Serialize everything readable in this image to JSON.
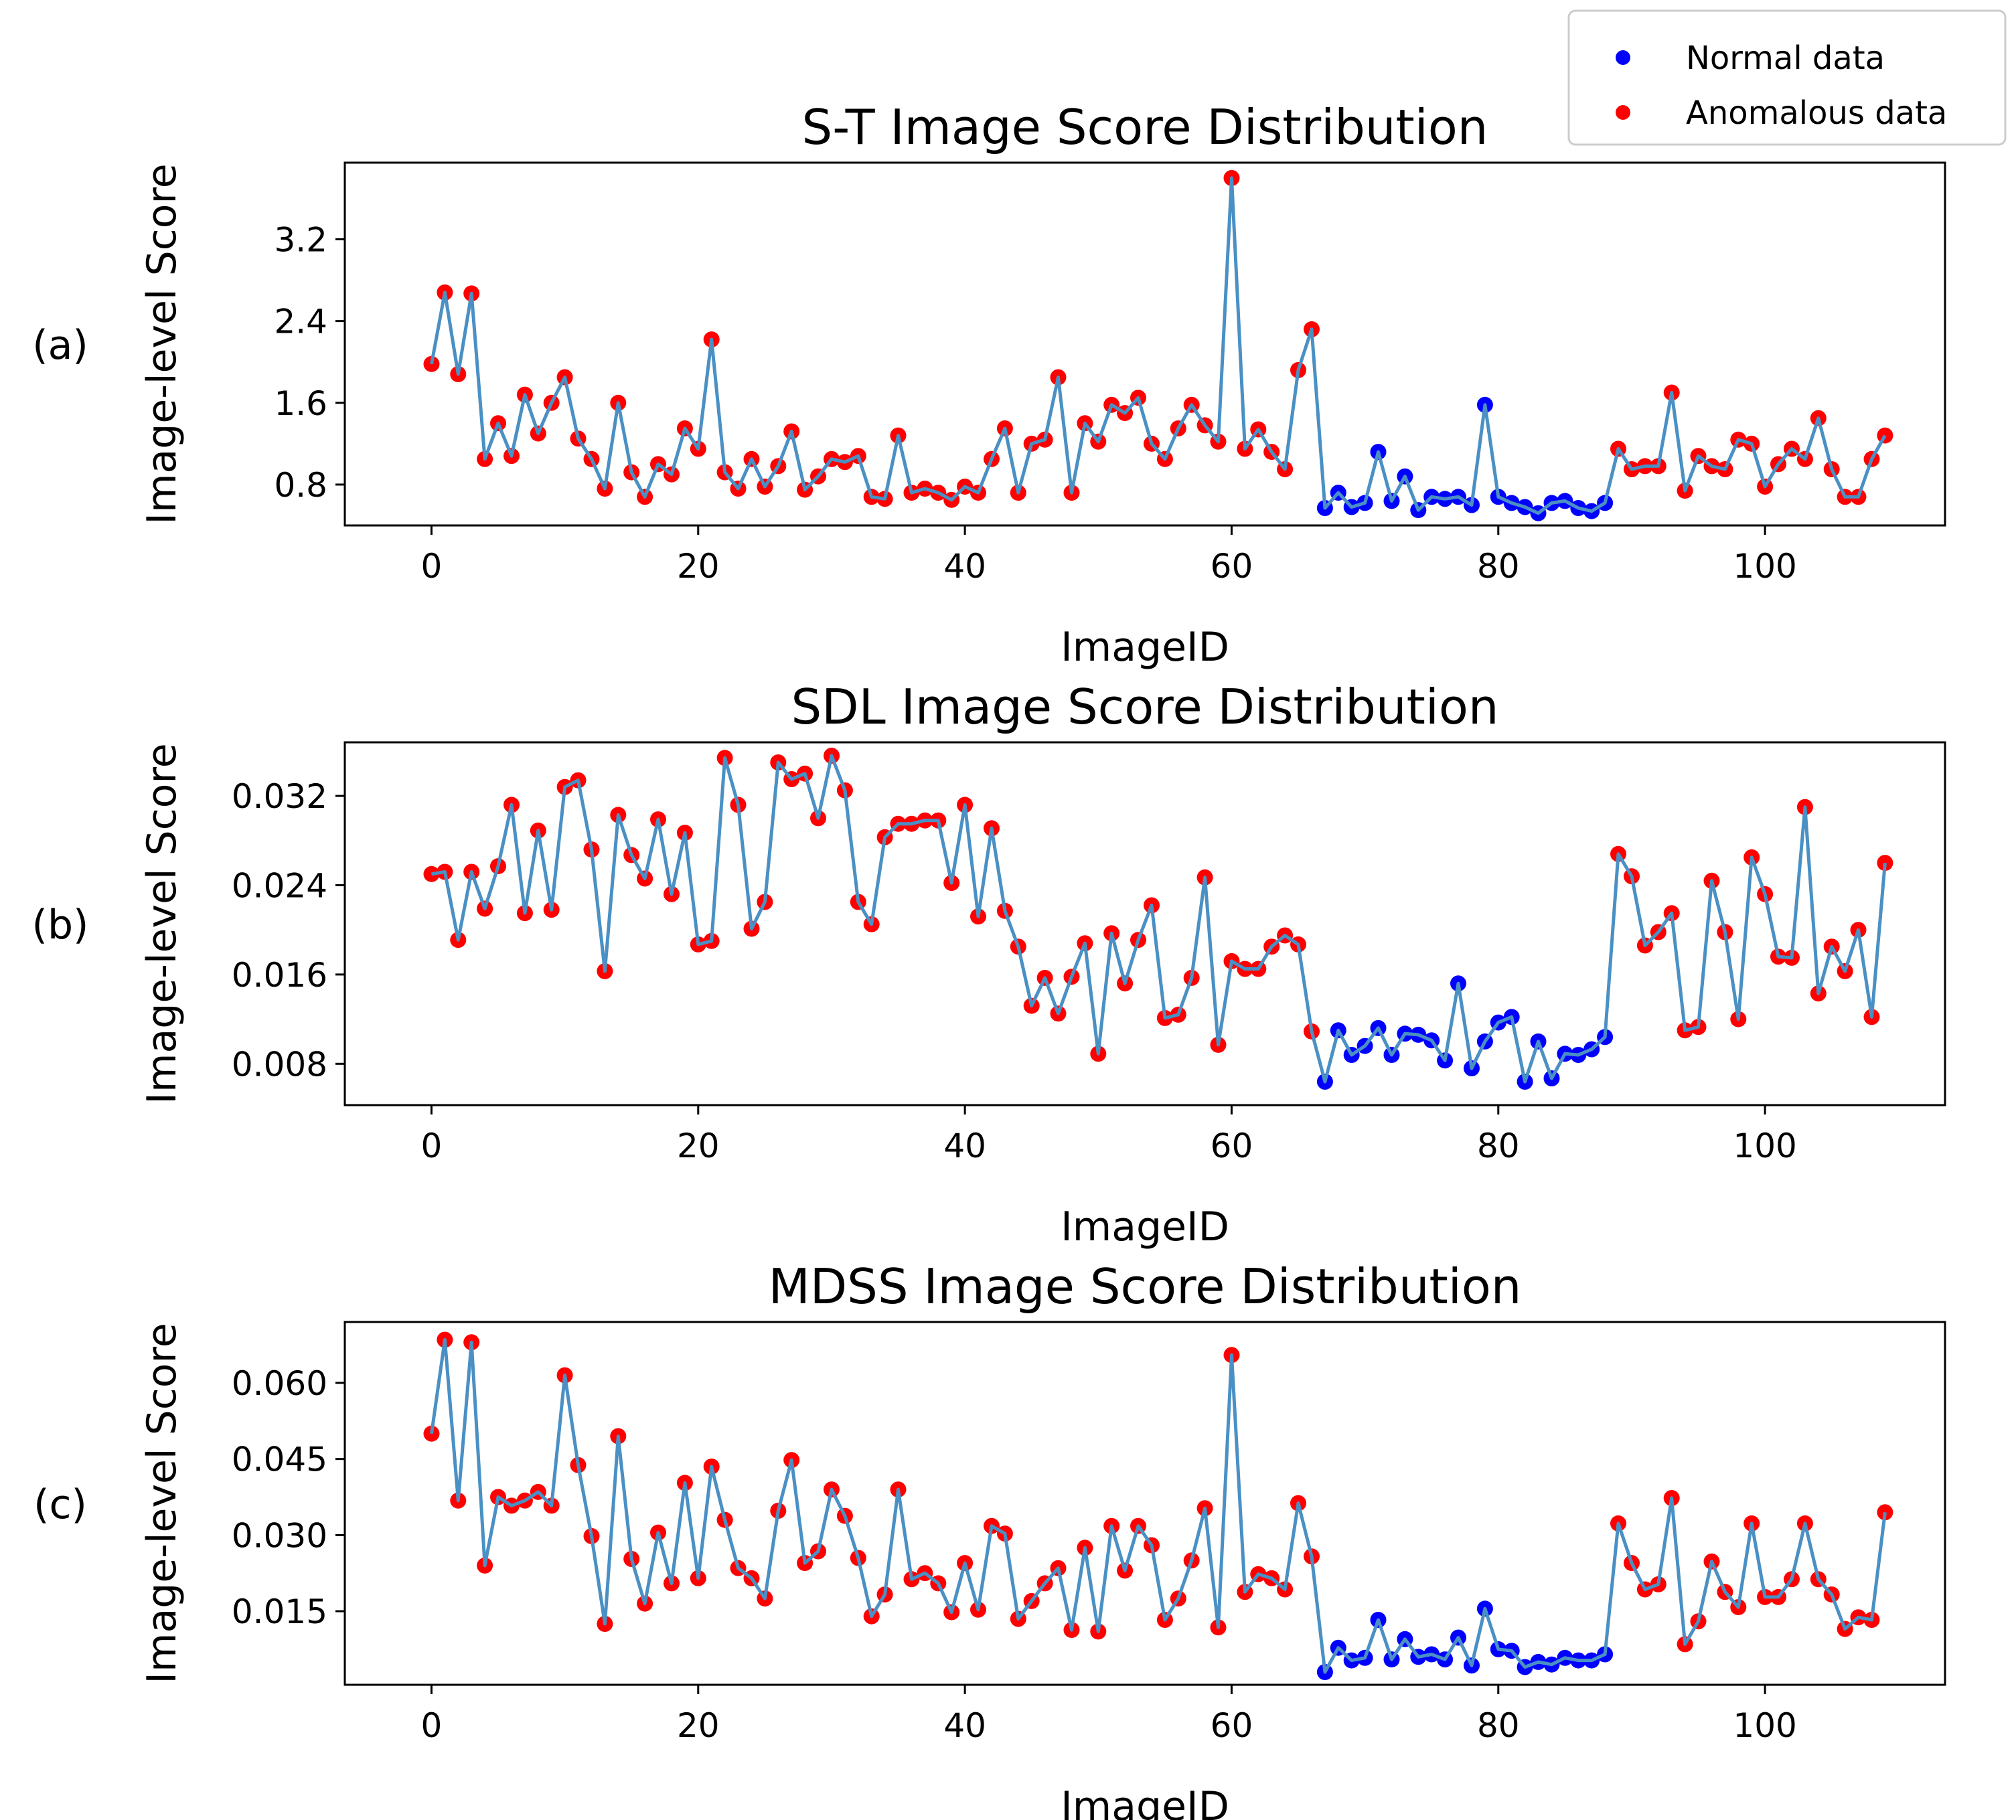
{
  "legend": {
    "placement": "top-right",
    "entries": [
      {
        "label": "Normal data",
        "color": "#0000ff"
      },
      {
        "label": "Anomalous data",
        "color": "#ff0000"
      }
    ]
  },
  "colors": {
    "line": "#4a90c4",
    "normal": "#0000ff",
    "anomalous": "#ff0000"
  },
  "chart_data": [
    {
      "type": "line",
      "panel": "(a)",
      "title": "S-T Image Score Distribution",
      "xlabel": "ImageID",
      "ylabel": "Image-level Score",
      "xlim": [
        -6.5,
        113.5
      ],
      "ylim": [
        0.4,
        3.95
      ],
      "xticks": [
        0,
        20,
        40,
        60,
        80,
        100
      ],
      "yticks": [
        0.8,
        1.6,
        2.4,
        3.2
      ],
      "ytick_labels": [
        "0.8",
        "1.6",
        "2.4",
        "3.2"
      ],
      "normal_range": [
        67,
        88
      ],
      "values": [
        1.98,
        2.68,
        1.88,
        2.67,
        1.05,
        1.4,
        1.08,
        1.68,
        1.3,
        1.6,
        1.85,
        1.25,
        1.05,
        0.76,
        1.6,
        0.92,
        0.68,
        1.0,
        0.9,
        1.35,
        1.15,
        2.22,
        0.92,
        0.76,
        1.05,
        0.78,
        0.98,
        1.32,
        0.75,
        0.88,
        1.05,
        1.02,
        1.08,
        0.68,
        0.66,
        1.28,
        0.72,
        0.76,
        0.72,
        0.65,
        0.78,
        0.72,
        1.05,
        1.35,
        0.72,
        1.2,
        1.24,
        1.85,
        0.72,
        1.4,
        1.22,
        1.58,
        1.5,
        1.65,
        1.2,
        1.05,
        1.35,
        1.58,
        1.38,
        1.22,
        3.8,
        1.15,
        1.34,
        1.12,
        0.95,
        1.92,
        2.32,
        0.57,
        0.72,
        0.58,
        0.62,
        1.12,
        0.64,
        0.88,
        0.55,
        0.68,
        0.66,
        0.68,
        0.6,
        1.58,
        0.68,
        0.62,
        0.58,
        0.52,
        0.62,
        0.64,
        0.57,
        0.54,
        0.62,
        1.15,
        0.95,
        0.98,
        0.98,
        1.7,
        0.74,
        1.08,
        0.98,
        0.95,
        1.24,
        1.2,
        0.78,
        1.0,
        1.15,
        1.05,
        1.45,
        0.95,
        0.68,
        0.68,
        1.05,
        1.28
      ]
    },
    {
      "type": "line",
      "panel": "(b)",
      "title": "SDL Image Score Distribution",
      "xlabel": "ImageID",
      "ylabel": "Image-level Score",
      "xlim": [
        -6.5,
        113.5
      ],
      "ylim": [
        0.0043,
        0.0368
      ],
      "xticks": [
        0,
        20,
        40,
        60,
        80,
        100
      ],
      "yticks": [
        0.008,
        0.016,
        0.024,
        0.032
      ],
      "ytick_labels": [
        "0.008",
        "0.016",
        "0.024",
        "0.032"
      ],
      "normal_range": [
        67,
        88
      ],
      "values": [
        0.025,
        0.0252,
        0.0191,
        0.0252,
        0.0219,
        0.0257,
        0.0312,
        0.0215,
        0.0289,
        0.0218,
        0.0328,
        0.0334,
        0.0272,
        0.0163,
        0.0303,
        0.0267,
        0.0246,
        0.0299,
        0.0232,
        0.0287,
        0.0187,
        0.019,
        0.0354,
        0.0312,
        0.0201,
        0.0225,
        0.035,
        0.0335,
        0.034,
        0.03,
        0.0356,
        0.0325,
        0.0225,
        0.0205,
        0.0283,
        0.0295,
        0.0295,
        0.0298,
        0.0298,
        0.0242,
        0.0312,
        0.0212,
        0.0291,
        0.0217,
        0.0185,
        0.0132,
        0.0157,
        0.0125,
        0.0158,
        0.0188,
        0.0089,
        0.0197,
        0.0152,
        0.0191,
        0.0222,
        0.0121,
        0.0124,
        0.0157,
        0.0247,
        0.0097,
        0.0172,
        0.0165,
        0.0165,
        0.0185,
        0.0195,
        0.0187,
        0.0109,
        0.0064,
        0.011,
        0.0088,
        0.0096,
        0.0112,
        0.0088,
        0.0107,
        0.0106,
        0.0101,
        0.0083,
        0.0152,
        0.0076,
        0.01,
        0.0117,
        0.0122,
        0.0064,
        0.01,
        0.0067,
        0.0089,
        0.0088,
        0.0093,
        0.0104,
        0.0268,
        0.0248,
        0.0186,
        0.0198,
        0.0215,
        0.011,
        0.0113,
        0.0244,
        0.0198,
        0.012,
        0.0265,
        0.0232,
        0.0176,
        0.0175,
        0.031,
        0.0143,
        0.0185,
        0.0163,
        0.02,
        0.0122,
        0.026
      ]
    },
    {
      "type": "line",
      "panel": "(c)",
      "title": "MDSS Image Score Distribution",
      "xlabel": "ImageID",
      "ylabel": "Image-level Score",
      "xlim": [
        -6.5,
        113.5
      ],
      "ylim": [
        0.0005,
        0.072
      ],
      "xticks": [
        0,
        20,
        40,
        60,
        80,
        100
      ],
      "yticks": [
        0.015,
        0.03,
        0.045,
        0.06
      ],
      "ytick_labels": [
        "0.015",
        "0.030",
        "0.045",
        "0.060"
      ],
      "normal_range": [
        67,
        88
      ],
      "values": [
        0.05,
        0.0685,
        0.0368,
        0.068,
        0.024,
        0.0375,
        0.0358,
        0.0368,
        0.0385,
        0.0358,
        0.0615,
        0.0438,
        0.0298,
        0.0125,
        0.0495,
        0.0253,
        0.0165,
        0.0305,
        0.0205,
        0.0403,
        0.0215,
        0.0435,
        0.033,
        0.0235,
        0.0215,
        0.0175,
        0.0348,
        0.0448,
        0.0245,
        0.0268,
        0.039,
        0.0338,
        0.0255,
        0.014,
        0.0183,
        0.039,
        0.0213,
        0.0225,
        0.0205,
        0.0148,
        0.0245,
        0.0153,
        0.0318,
        0.0303,
        0.0135,
        0.017,
        0.0205,
        0.0235,
        0.0113,
        0.0275,
        0.011,
        0.0318,
        0.023,
        0.0318,
        0.028,
        0.0133,
        0.0175,
        0.025,
        0.0353,
        0.0118,
        0.0655,
        0.0188,
        0.0223,
        0.0215,
        0.0193,
        0.0363,
        0.0258,
        0.003,
        0.0078,
        0.0053,
        0.0058,
        0.0133,
        0.0055,
        0.0095,
        0.006,
        0.0065,
        0.0055,
        0.0098,
        0.0043,
        0.0155,
        0.0075,
        0.0072,
        0.004,
        0.005,
        0.0045,
        0.0058,
        0.0053,
        0.0053,
        0.0065,
        0.0323,
        0.0245,
        0.0193,
        0.0203,
        0.0373,
        0.0085,
        0.013,
        0.0248,
        0.0188,
        0.0158,
        0.0323,
        0.0178,
        0.0178,
        0.0213,
        0.0323,
        0.0213,
        0.0183,
        0.0115,
        0.0138,
        0.0133,
        0.0345
      ]
    }
  ]
}
